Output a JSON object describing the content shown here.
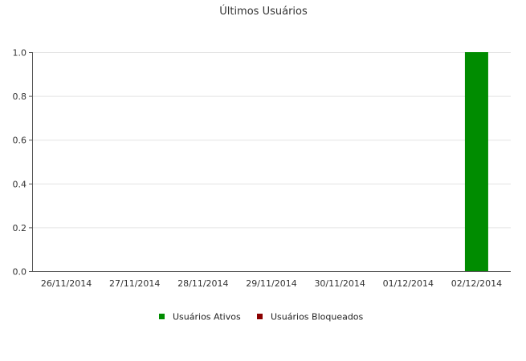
{
  "chart_data": {
    "type": "bar",
    "title": "Últimos Usuários",
    "xlabel": "",
    "ylabel": "",
    "categories": [
      "26/11/2014",
      "27/11/2014",
      "28/11/2014",
      "29/11/2014",
      "30/11/2014",
      "01/12/2014",
      "02/12/2014"
    ],
    "series": [
      {
        "name": "Usuários Ativos",
        "color": "#008C00",
        "values": [
          0,
          0,
          0,
          0,
          0,
          0,
          1
        ]
      },
      {
        "name": "Usuários Bloqueados",
        "color": "#8B0000",
        "values": [
          0,
          0,
          0,
          0,
          0,
          0,
          0
        ]
      }
    ],
    "ylim": [
      0,
      1.0
    ],
    "yticks": [
      "0.0",
      "0.2",
      "0.4",
      "0.6",
      "0.8",
      "1.0"
    ],
    "grid": true,
    "legend_position": "bottom-center"
  }
}
